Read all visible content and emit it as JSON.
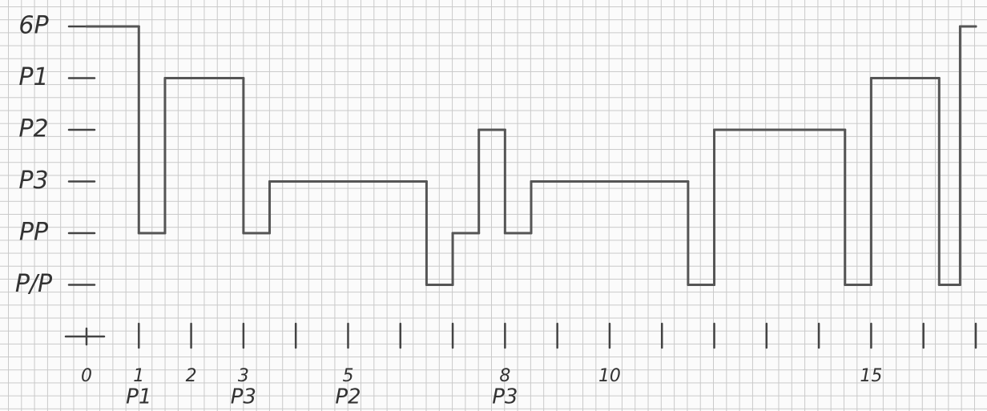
{
  "chart_data": {
    "type": "step",
    "x": [
      0,
      1,
      1.5,
      3,
      3.5,
      6.5,
      7,
      7.5,
      8,
      8.5,
      11.5,
      12,
      14.5,
      15,
      16.3,
      16.7,
      17
    ],
    "values": [
      6,
      2,
      5,
      2,
      3,
      1,
      2,
      4,
      2,
      3,
      1,
      4,
      1,
      5,
      1,
      6,
      6
    ],
    "color": "#555555",
    "xlim": [
      0,
      17
    ],
    "xticks": [
      0,
      1,
      2,
      3,
      4,
      5,
      6,
      7,
      8,
      9,
      10,
      11,
      12,
      13,
      14,
      15,
      16,
      17
    ],
    "xlabels": [
      0,
      1,
      2,
      3,
      5,
      8,
      10,
      15
    ],
    "annotations": [
      {
        "x": 1,
        "text": "P1"
      },
      {
        "x": 3,
        "text": "P3"
      },
      {
        "x": 5,
        "text": "P2"
      },
      {
        "x": 8,
        "text": "P3"
      }
    ],
    "ylim": [
      0,
      6
    ],
    "yticks": [
      {
        "value": 6,
        "label": "6P"
      },
      {
        "value": 5,
        "label": "P1"
      },
      {
        "value": 4,
        "label": "P2"
      },
      {
        "value": 3,
        "label": "P3"
      },
      {
        "value": 2,
        "label": "PP"
      },
      {
        "value": 1,
        "label": "P/P"
      }
    ]
  }
}
